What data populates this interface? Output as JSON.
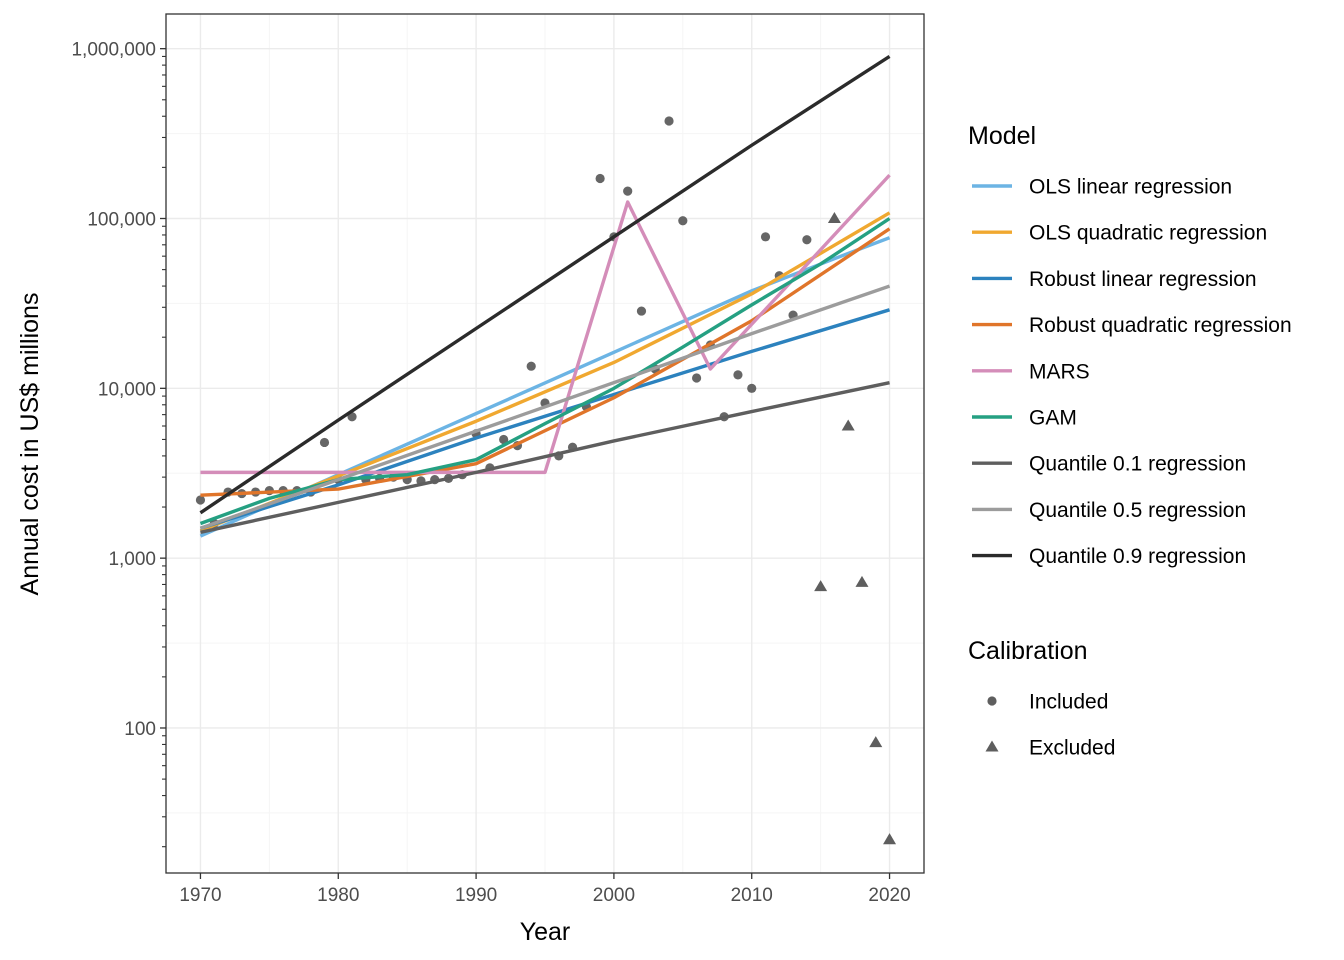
{
  "chart_data": {
    "type": "scatter",
    "title": "",
    "xlabel": "Year",
    "ylabel": "Annual cost in US$ millions",
    "x_scale": "linear",
    "y_scale": "log10",
    "xlim": [
      1967.5,
      2022.5
    ],
    "ylim": [
      14,
      1600000
    ],
    "x_ticks": [
      1970,
      1980,
      1990,
      2000,
      2010,
      2020
    ],
    "x_tick_labels": [
      "1970",
      "1980",
      "1990",
      "2000",
      "2010",
      "2020"
    ],
    "y_ticks": [
      100,
      1000,
      10000,
      100000,
      1000000
    ],
    "y_tick_labels": [
      "100",
      "1,000",
      "10,000",
      "100,000",
      "1,000,000"
    ],
    "grid": true,
    "legend_position": "right",
    "legends": [
      {
        "title": "Model",
        "entries": [
          {
            "label": "OLS linear regression",
            "color": "#6CB4E4"
          },
          {
            "label": "OLS quadratic regression",
            "color": "#F0A830"
          },
          {
            "label": "Robust linear regression",
            "color": "#2C82BE"
          },
          {
            "label": "Robust quadratic regression",
            "color": "#E0752A"
          },
          {
            "label": "MARS",
            "color": "#D48DB9"
          },
          {
            "label": "GAM",
            "color": "#25A082"
          },
          {
            "label": "Quantile 0.1 regression",
            "color": "#5E5E5E"
          },
          {
            "label": "Quantile 0.5 regression",
            "color": "#9C9C9C"
          },
          {
            "label": "Quantile 0.9 regression",
            "color": "#2B2B2B"
          }
        ]
      },
      {
        "title": "Calibration",
        "entries": [
          {
            "label": "Included",
            "shape": "circle",
            "color": "#5E5E5E"
          },
          {
            "label": "Excluded",
            "shape": "triangle",
            "color": "#5E5E5E"
          }
        ]
      }
    ],
    "series": [
      {
        "name": "OLS linear regression",
        "color": "#6CB4E4",
        "x": [
          1970,
          1980,
          1990,
          2000,
          2010,
          2016,
          2020
        ],
        "y": [
          1350,
          3100,
          7100,
          16300,
          37500,
          58000,
          77000
        ]
      },
      {
        "name": "OLS quadratic regression",
        "color": "#F0A830",
        "x": [
          1970,
          1980,
          1990,
          2000,
          2010,
          2020
        ],
        "y": [
          1450,
          3050,
          6400,
          14200,
          36000,
          108000
        ]
      },
      {
        "name": "Robust linear regression",
        "color": "#2C82BE",
        "x": [
          1970,
          1980,
          1990,
          2000,
          2010,
          2020
        ],
        "y": [
          1500,
          2700,
          5100,
          9200,
          16500,
          29000
        ]
      },
      {
        "name": "Robust quadratic regression",
        "color": "#E0752A",
        "x": [
          1970,
          1980,
          1990,
          2000,
          2010,
          2020
        ],
        "y": [
          2350,
          2550,
          3600,
          8800,
          25000,
          87000
        ]
      },
      {
        "name": "MARS",
        "color": "#D48DB9",
        "x": [
          1970,
          1995,
          2001,
          2007,
          2020
        ],
        "y": [
          3200,
          3200,
          125000,
          13000,
          180000
        ]
      },
      {
        "name": "GAM",
        "color": "#25A082",
        "x": [
          1970,
          1975,
          1980,
          1985,
          1990,
          1995,
          2000,
          2005,
          2010,
          2015,
          2020
        ],
        "y": [
          1600,
          2250,
          2900,
          3100,
          3800,
          6200,
          10000,
          17500,
          31000,
          54000,
          100000
        ]
      },
      {
        "name": "Quantile 0.1 regression",
        "color": "#5E5E5E",
        "x": [
          1970,
          1980,
          1990,
          2000,
          2010,
          2020
        ],
        "y": [
          1420,
          2130,
          3200,
          4900,
          7300,
          10800
        ]
      },
      {
        "name": "Quantile 0.5 regression",
        "color": "#9C9C9C",
        "x": [
          1970,
          1980,
          1990,
          2000,
          2010,
          2020
        ],
        "y": [
          1500,
          2900,
          5600,
          10800,
          21000,
          40000
        ]
      },
      {
        "name": "Quantile 0.9 regression",
        "color": "#2B2B2B",
        "x": [
          1970,
          1980,
          1990,
          2000,
          2010,
          2020
        ],
        "y": [
          1850,
          6500,
          22500,
          78000,
          270000,
          900000
        ]
      }
    ],
    "points": {
      "included": {
        "shape": "circle",
        "color": "#5E5E5E",
        "x": [
          1970,
          1971,
          1972,
          1973,
          1974,
          1975,
          1976,
          1977,
          1978,
          1979,
          1980,
          1981,
          1982,
          1983,
          1984,
          1985,
          1986,
          1987,
          1988,
          1989,
          1990,
          1991,
          1992,
          1993,
          1994,
          1995,
          1996,
          1997,
          1998,
          1999,
          2000,
          2001,
          2002,
          2003,
          2004,
          2005,
          2006,
          2007,
          2008,
          2009,
          2010,
          2011,
          2012,
          2013,
          2014
        ],
        "y": [
          2200,
          1600,
          2450,
          2400,
          2450,
          2500,
          2500,
          2500,
          2450,
          4800,
          2900,
          6800,
          2900,
          2950,
          3000,
          2900,
          2850,
          2900,
          2950,
          3100,
          5400,
          3400,
          5000,
          4600,
          13500,
          8200,
          4000,
          4500,
          7800,
          172000,
          78000,
          145000,
          28500,
          13000,
          375000,
          97000,
          11500,
          18000,
          6800,
          12000,
          10000,
          78000,
          46000,
          27000,
          75000
        ]
      },
      "excluded": {
        "shape": "triangle",
        "color": "#5E5E5E",
        "x": [
          2015,
          2016,
          2017,
          2018,
          2019,
          2020
        ],
        "y": [
          680,
          100000,
          6000,
          720,
          82,
          22
        ]
      }
    }
  }
}
